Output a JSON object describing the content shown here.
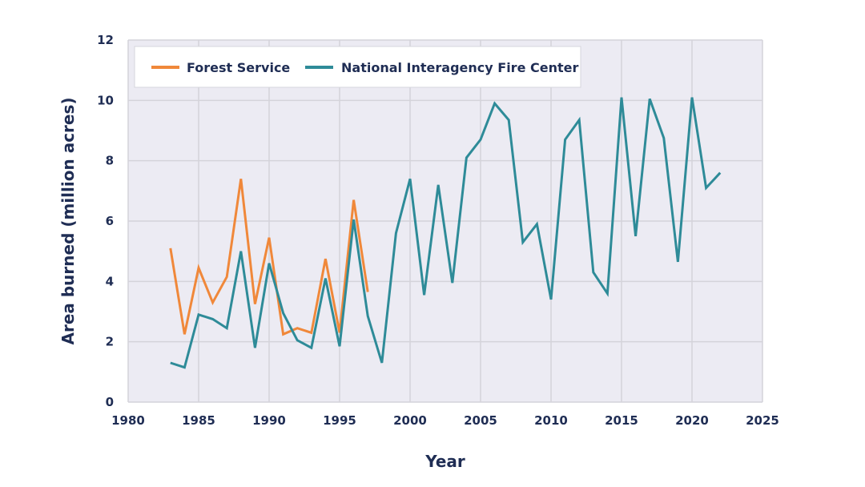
{
  "chart_data": {
    "type": "line",
    "xlabel": "Year",
    "ylabel": "Area burned (million acres)",
    "xlim": [
      1980,
      2025
    ],
    "ylim": [
      0,
      12
    ],
    "xticks": [
      1980,
      1985,
      1990,
      1995,
      2000,
      2005,
      2010,
      2015,
      2020,
      2025
    ],
    "yticks": [
      0,
      2,
      4,
      6,
      8,
      10,
      12
    ],
    "grid": true,
    "legend_position": "top-left",
    "series": [
      {
        "name": "Forest Service",
        "color": "#f0883a",
        "x": [
          1983,
          1984,
          1985,
          1986,
          1987,
          1988,
          1989,
          1990,
          1991,
          1992,
          1993,
          1994,
          1995,
          1996,
          1997
        ],
        "y": [
          5.1,
          2.25,
          4.45,
          3.3,
          4.15,
          7.4,
          3.25,
          5.45,
          2.25,
          2.45,
          2.3,
          4.75,
          2.3,
          6.7,
          3.65
        ]
      },
      {
        "name": "National Interagency Fire Center",
        "color": "#2e8b98",
        "x": [
          1983,
          1984,
          1985,
          1986,
          1987,
          1988,
          1989,
          1990,
          1991,
          1992,
          1993,
          1994,
          1995,
          1996,
          1997,
          1998,
          1999,
          2000,
          2001,
          2002,
          2003,
          2004,
          2005,
          2006,
          2007,
          2008,
          2009,
          2010,
          2011,
          2012,
          2013,
          2014,
          2015,
          2016,
          2017,
          2018,
          2019,
          2020,
          2021,
          2022
        ],
        "y": [
          1.3,
          1.15,
          2.9,
          2.75,
          2.45,
          5.0,
          1.8,
          4.6,
          2.95,
          2.05,
          1.8,
          4.1,
          1.85,
          6.05,
          2.85,
          1.3,
          5.6,
          7.4,
          3.55,
          7.2,
          3.95,
          8.1,
          8.7,
          9.9,
          9.35,
          5.3,
          5.9,
          3.4,
          8.7,
          9.35,
          4.3,
          3.6,
          10.1,
          5.5,
          10.05,
          8.75,
          4.65,
          10.1,
          7.1,
          7.6
        ]
      }
    ]
  }
}
